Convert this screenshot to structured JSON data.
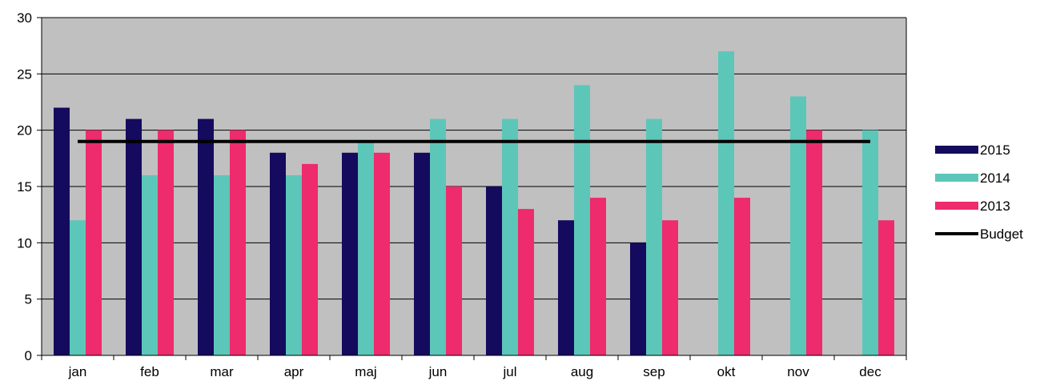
{
  "chart_data": {
    "type": "bar",
    "categories": [
      "jan",
      "feb",
      "mar",
      "apr",
      "maj",
      "jun",
      "jul",
      "aug",
      "sep",
      "okt",
      "nov",
      "dec"
    ],
    "series": [
      {
        "name": "2015",
        "type": "bar",
        "color": "#140a5e",
        "values": [
          22,
          21,
          21,
          18,
          18,
          18,
          15,
          12,
          10,
          null,
          null,
          null
        ]
      },
      {
        "name": "2014",
        "type": "bar",
        "color": "#5cc6b9",
        "values": [
          12,
          16,
          16,
          16,
          19,
          21,
          21,
          24,
          21,
          27,
          23,
          20
        ]
      },
      {
        "name": "2013",
        "type": "bar",
        "color": "#ee2b6c",
        "values": [
          20,
          20,
          20,
          17,
          18,
          15,
          13,
          14,
          12,
          14,
          20,
          12
        ]
      },
      {
        "name": "Budget",
        "type": "line",
        "color": "#000000",
        "values": [
          19,
          19,
          19,
          19,
          19,
          19,
          19,
          19,
          19,
          19,
          19,
          19
        ]
      }
    ],
    "ylim": [
      0,
      30
    ],
    "yticks": [
      "0",
      "5",
      "10",
      "15",
      "20",
      "25",
      "30"
    ],
    "grid": true,
    "plot_background": "#c0c0c0",
    "legend_position": "right"
  }
}
